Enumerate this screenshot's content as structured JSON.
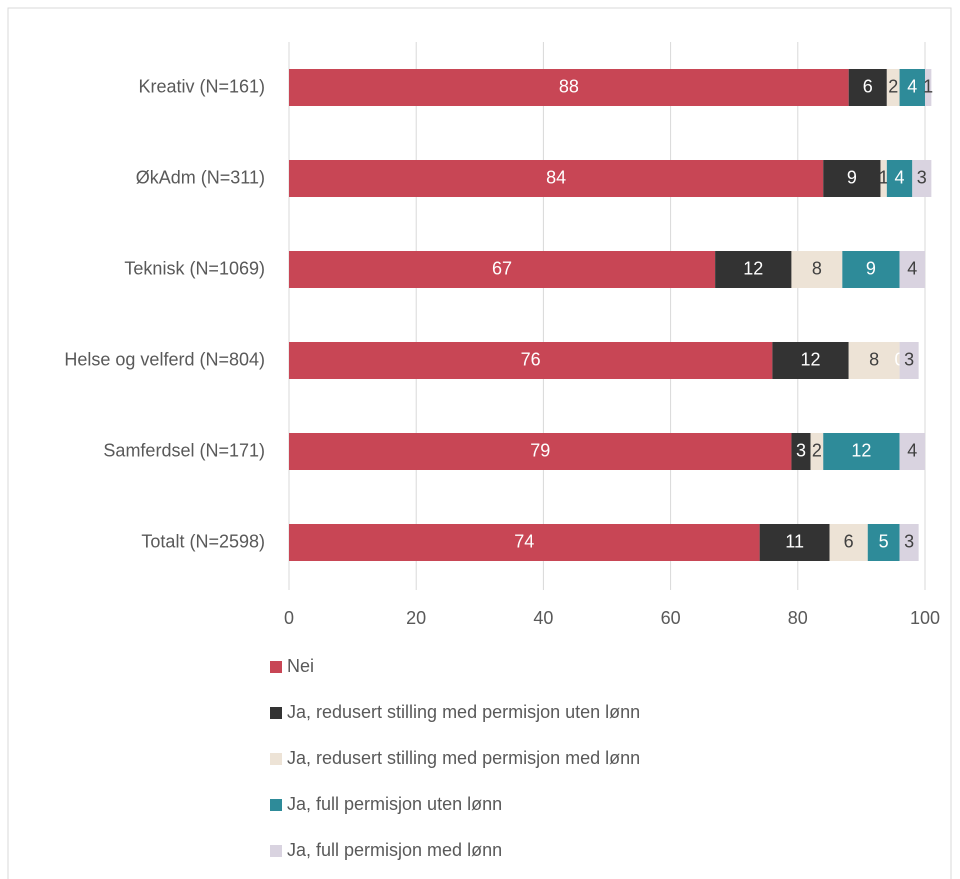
{
  "chart_data": {
    "type": "stacked_barh",
    "categories": [
      "Kreativ (N=161)",
      "ØkAdm (N=311)",
      "Teknisk (N=1069)",
      "Helse og velferd (N=804)",
      "Samferdsel (N=171)",
      "Totalt (N=2598)"
    ],
    "series": [
      {
        "name": "Nei",
        "color": "#c84655",
        "values": [
          88,
          84,
          67,
          76,
          79,
          74
        ]
      },
      {
        "name": "Ja, redusert stilling med permisjon uten lønn",
        "color": "#333333",
        "values": [
          6,
          9,
          12,
          12,
          3,
          11
        ]
      },
      {
        "name": "Ja, redusert stilling med permisjon med lønn",
        "color": "#ede3d6",
        "values": [
          2,
          1,
          8,
          8,
          2,
          6
        ]
      },
      {
        "name": "Ja, full permisjon uten lønn",
        "color": "#2e8b99",
        "values": [
          4,
          4,
          9,
          0,
          12,
          5
        ]
      },
      {
        "name": "Ja, full permisjon med lønn",
        "color": "#d9d3e0",
        "values": [
          1,
          3,
          4,
          3,
          4,
          3
        ]
      }
    ],
    "xlim": [
      0,
      100
    ],
    "xticks": [
      0,
      20,
      40,
      60,
      80,
      100
    ],
    "grid": true,
    "legend": "bottom"
  }
}
